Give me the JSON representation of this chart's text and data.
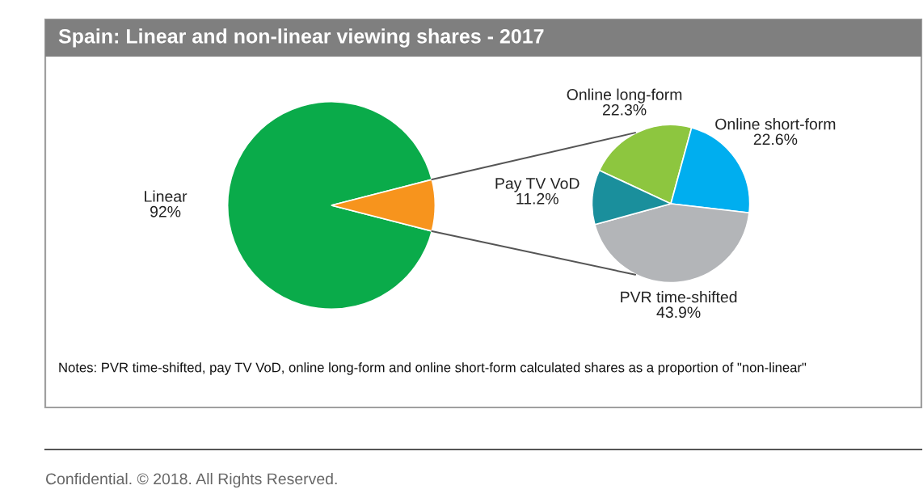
{
  "chart_data": [
    {
      "type": "pie",
      "title": "Spain: Linear and non-linear viewing shares - 2017",
      "categories": [
        "Linear",
        null
      ],
      "values": [
        92,
        8
      ],
      "value_labels": [
        "92%",
        null
      ],
      "colors": [
        "#0aab4a",
        "#f7941d"
      ],
      "annotations": [
        "Notes: PVR time-shifted, pay TV VoD, online long-form and online short-form calculated shares as a proportion of \"non-linear\"",
        "Confidential. © 2018. All Rights Reserved."
      ]
    },
    {
      "type": "pie",
      "categories": [
        "Online long-form",
        "Online short-form",
        "PVR time-shifted",
        "Pay TV VoD"
      ],
      "values": [
        22.3,
        22.6,
        43.9,
        11.2
      ],
      "value_labels": [
        "22.3%",
        "22.6%",
        "43.9%",
        "11.2%"
      ],
      "colors": [
        "#8dc63f",
        "#00aeef",
        "#b3b5b8",
        "#1a8f9c"
      ]
    }
  ]
}
